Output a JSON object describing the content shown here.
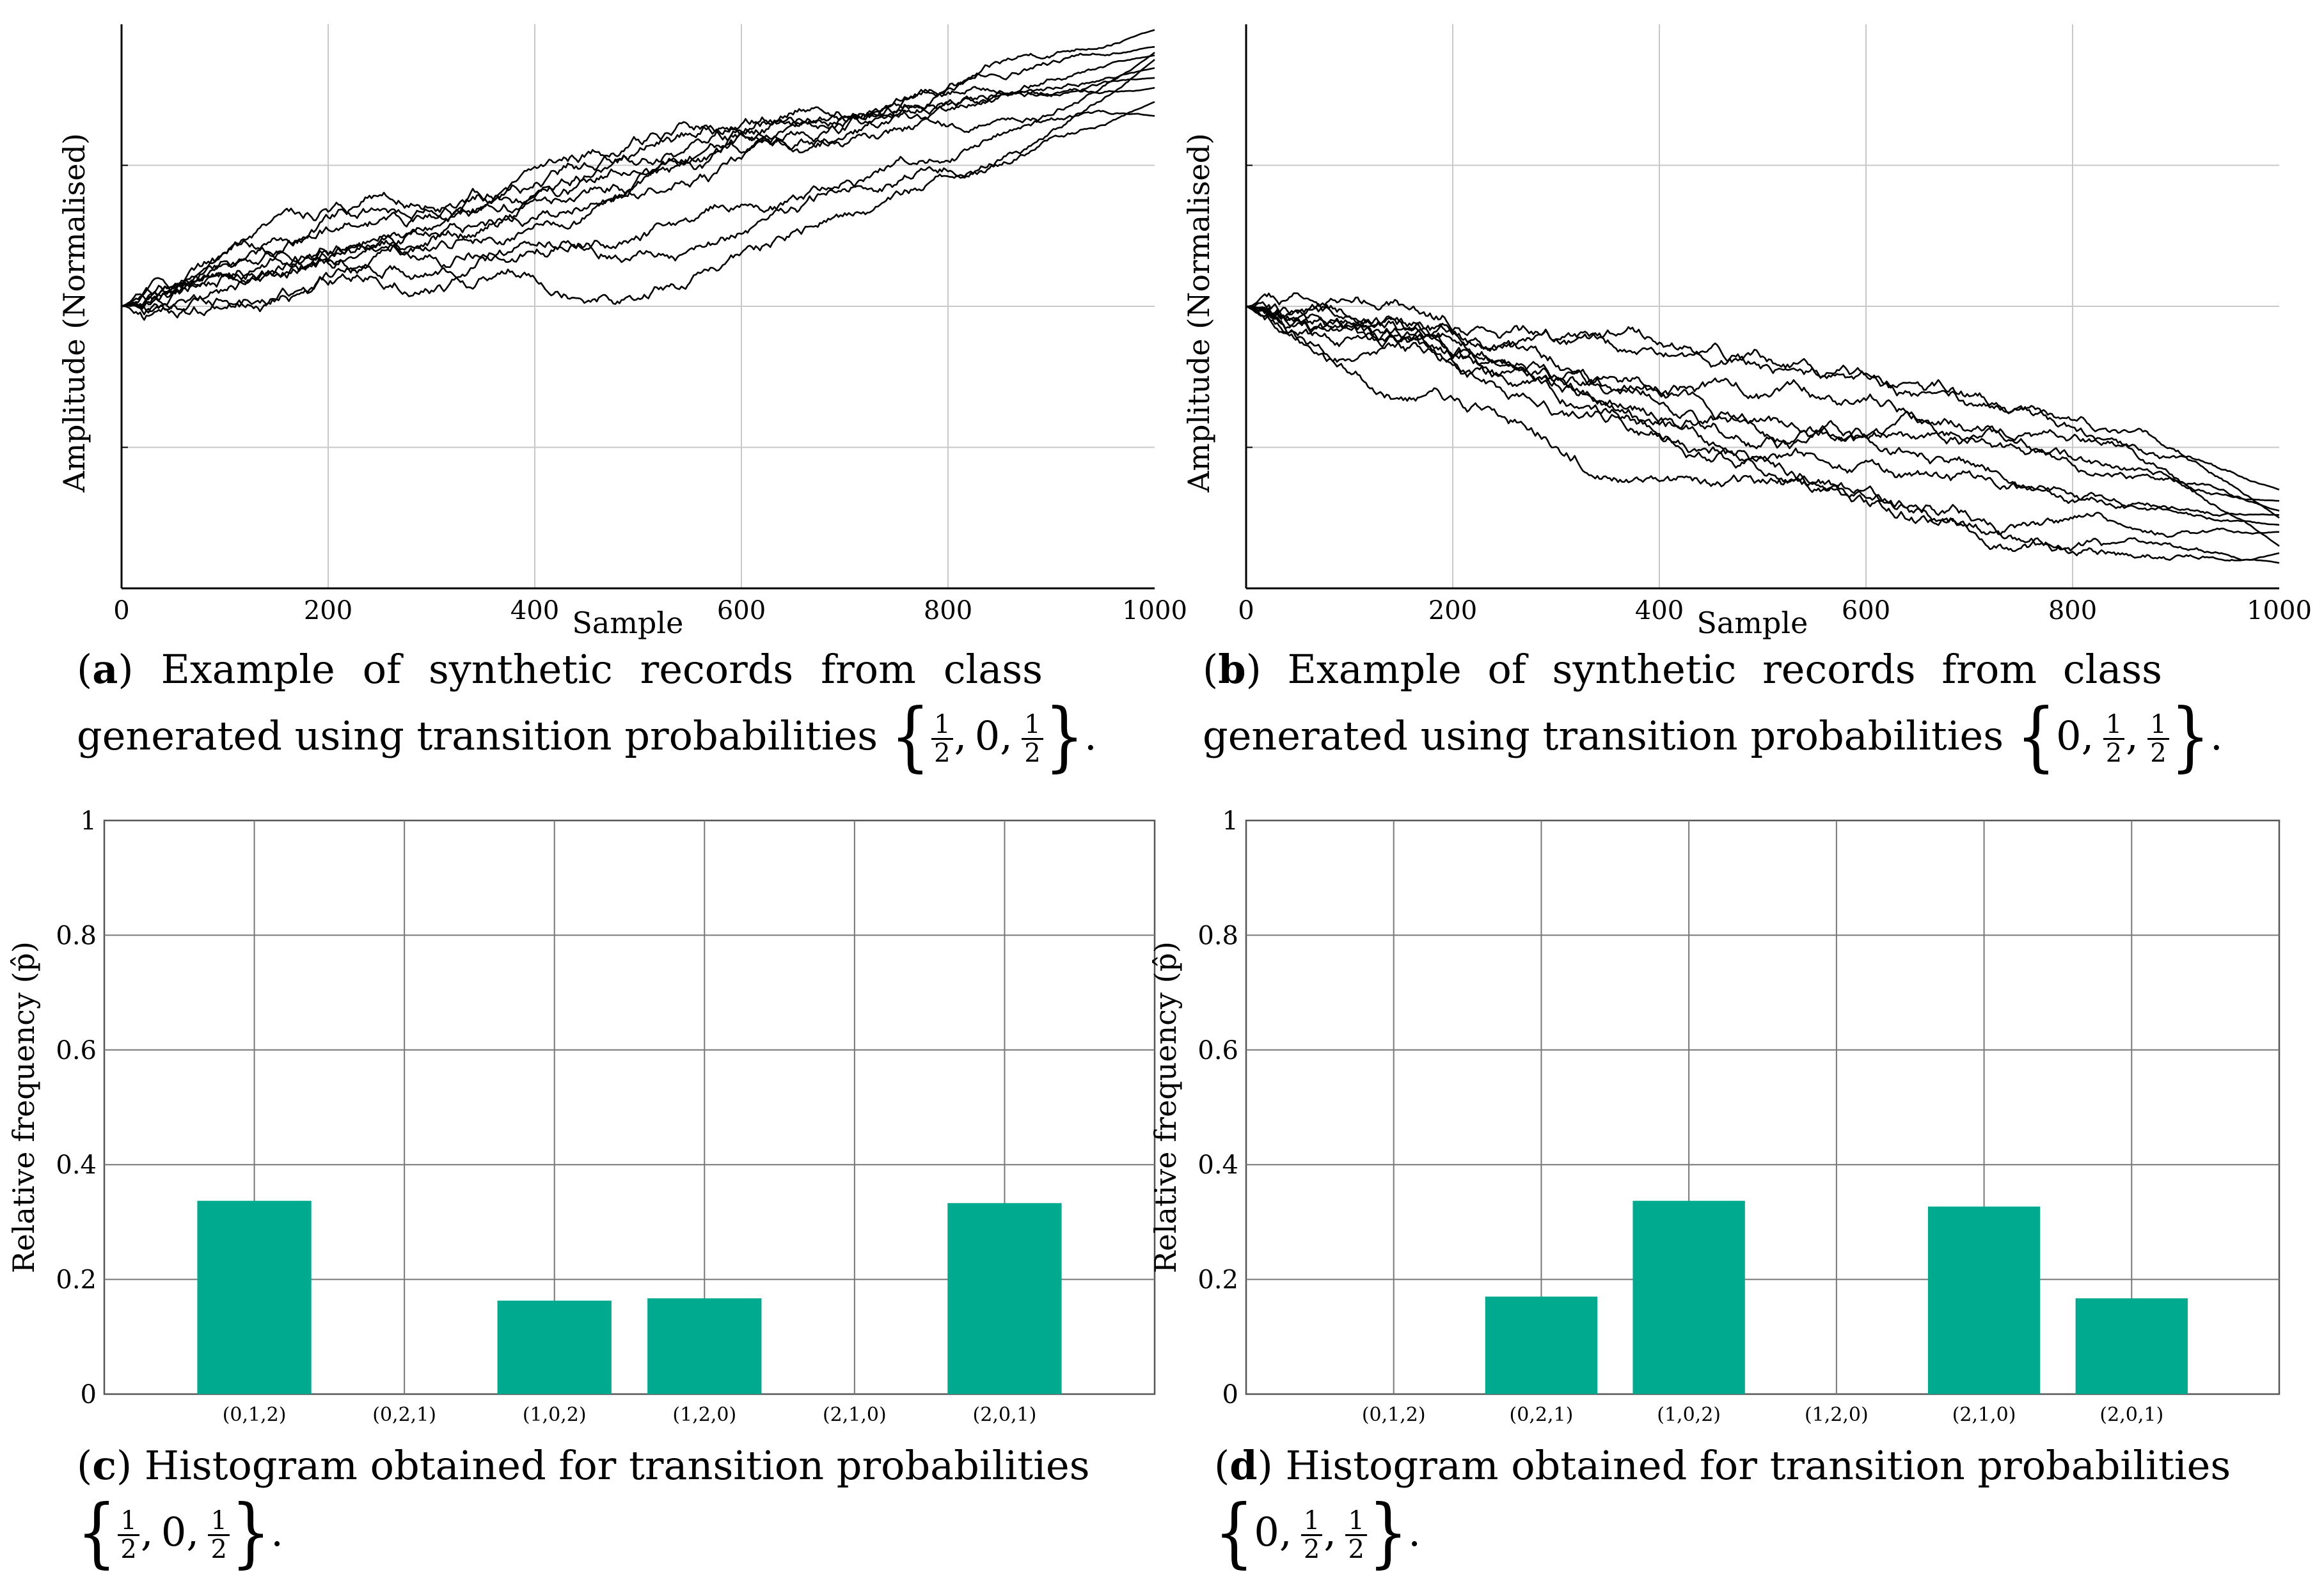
{
  "chart_data": [
    {
      "id": "a",
      "type": "line",
      "xlabel": "Sample",
      "ylabel": "Amplitude (Normalised)",
      "xlim": [
        0,
        1000
      ],
      "xticks": [
        "0",
        "200",
        "400",
        "600",
        "800",
        "1000"
      ],
      "ylim": [
        -2,
        2
      ],
      "grid": true,
      "series_count": 10,
      "start_value": 0,
      "end_values": [
        1.96,
        1.78,
        1.62,
        1.75,
        1.55,
        1.69,
        1.84,
        1.45,
        1.8,
        1.35
      ],
      "line_color": "#000000"
    },
    {
      "id": "b",
      "type": "line",
      "xlabel": "Sample",
      "ylabel": "Amplitude (Normalised)",
      "xlim": [
        0,
        1000
      ],
      "xticks": [
        "0",
        "200",
        "400",
        "600",
        "800",
        "1000"
      ],
      "ylim": [
        -2,
        2
      ],
      "grid": true,
      "series_count": 10,
      "start_value": 0,
      "end_values": [
        -1.3,
        -1.45,
        -1.55,
        -1.5,
        -1.75,
        -1.82,
        -1.38,
        -1.6,
        -1.7,
        -1.48
      ],
      "line_color": "#000000"
    },
    {
      "id": "c",
      "type": "bar",
      "ylabel": "Relative frequency (p̂)",
      "categories": [
        "(0,1,2)",
        "(0,2,1)",
        "(1,0,2)",
        "(1,2,0)",
        "(2,1,0)",
        "(2,0,1)"
      ],
      "values": [
        0.337,
        0,
        0.163,
        0.167,
        0,
        0.333
      ],
      "ylim": [
        0,
        1
      ],
      "yticks": [
        "0",
        "0.2",
        "0.4",
        "0.6",
        "0.8",
        "1"
      ],
      "grid": true,
      "bar_color": "#00aa8e"
    },
    {
      "id": "d",
      "type": "bar",
      "ylabel": "Relative frequency (p̂)",
      "categories": [
        "(0,1,2)",
        "(0,2,1)",
        "(1,0,2)",
        "(1,2,0)",
        "(2,1,0)",
        "(2,0,1)"
      ],
      "values": [
        0,
        0.17,
        0.337,
        0,
        0.327,
        0.167
      ],
      "ylim": [
        0,
        1
      ],
      "yticks": [
        "0",
        "0.2",
        "0.4",
        "0.6",
        "0.8",
        "1"
      ],
      "grid": true,
      "bar_color": "#00aa8e"
    }
  ],
  "captions": {
    "a": {
      "label": "a",
      "line1": "Example of synthetic records from class",
      "line2": "generated using transition probabilities",
      "probs": [
        "1",
        "2",
        "0",
        "1",
        "2"
      ]
    },
    "b": {
      "label": "b",
      "line1": "Example of synthetic records from class",
      "line2": "generated using transition probabilities",
      "probs": [
        "0",
        "1",
        "2",
        "1",
        "2"
      ]
    },
    "c": {
      "label": "c",
      "line1": "Histogram obtained for transition probabilities",
      "probs": [
        "1",
        "2",
        "0",
        "1",
        "2"
      ]
    },
    "d": {
      "label": "d",
      "line1": "Histogram obtained for transition probabilities",
      "probs": [
        "0",
        "1",
        "2",
        "1",
        "2"
      ]
    }
  }
}
